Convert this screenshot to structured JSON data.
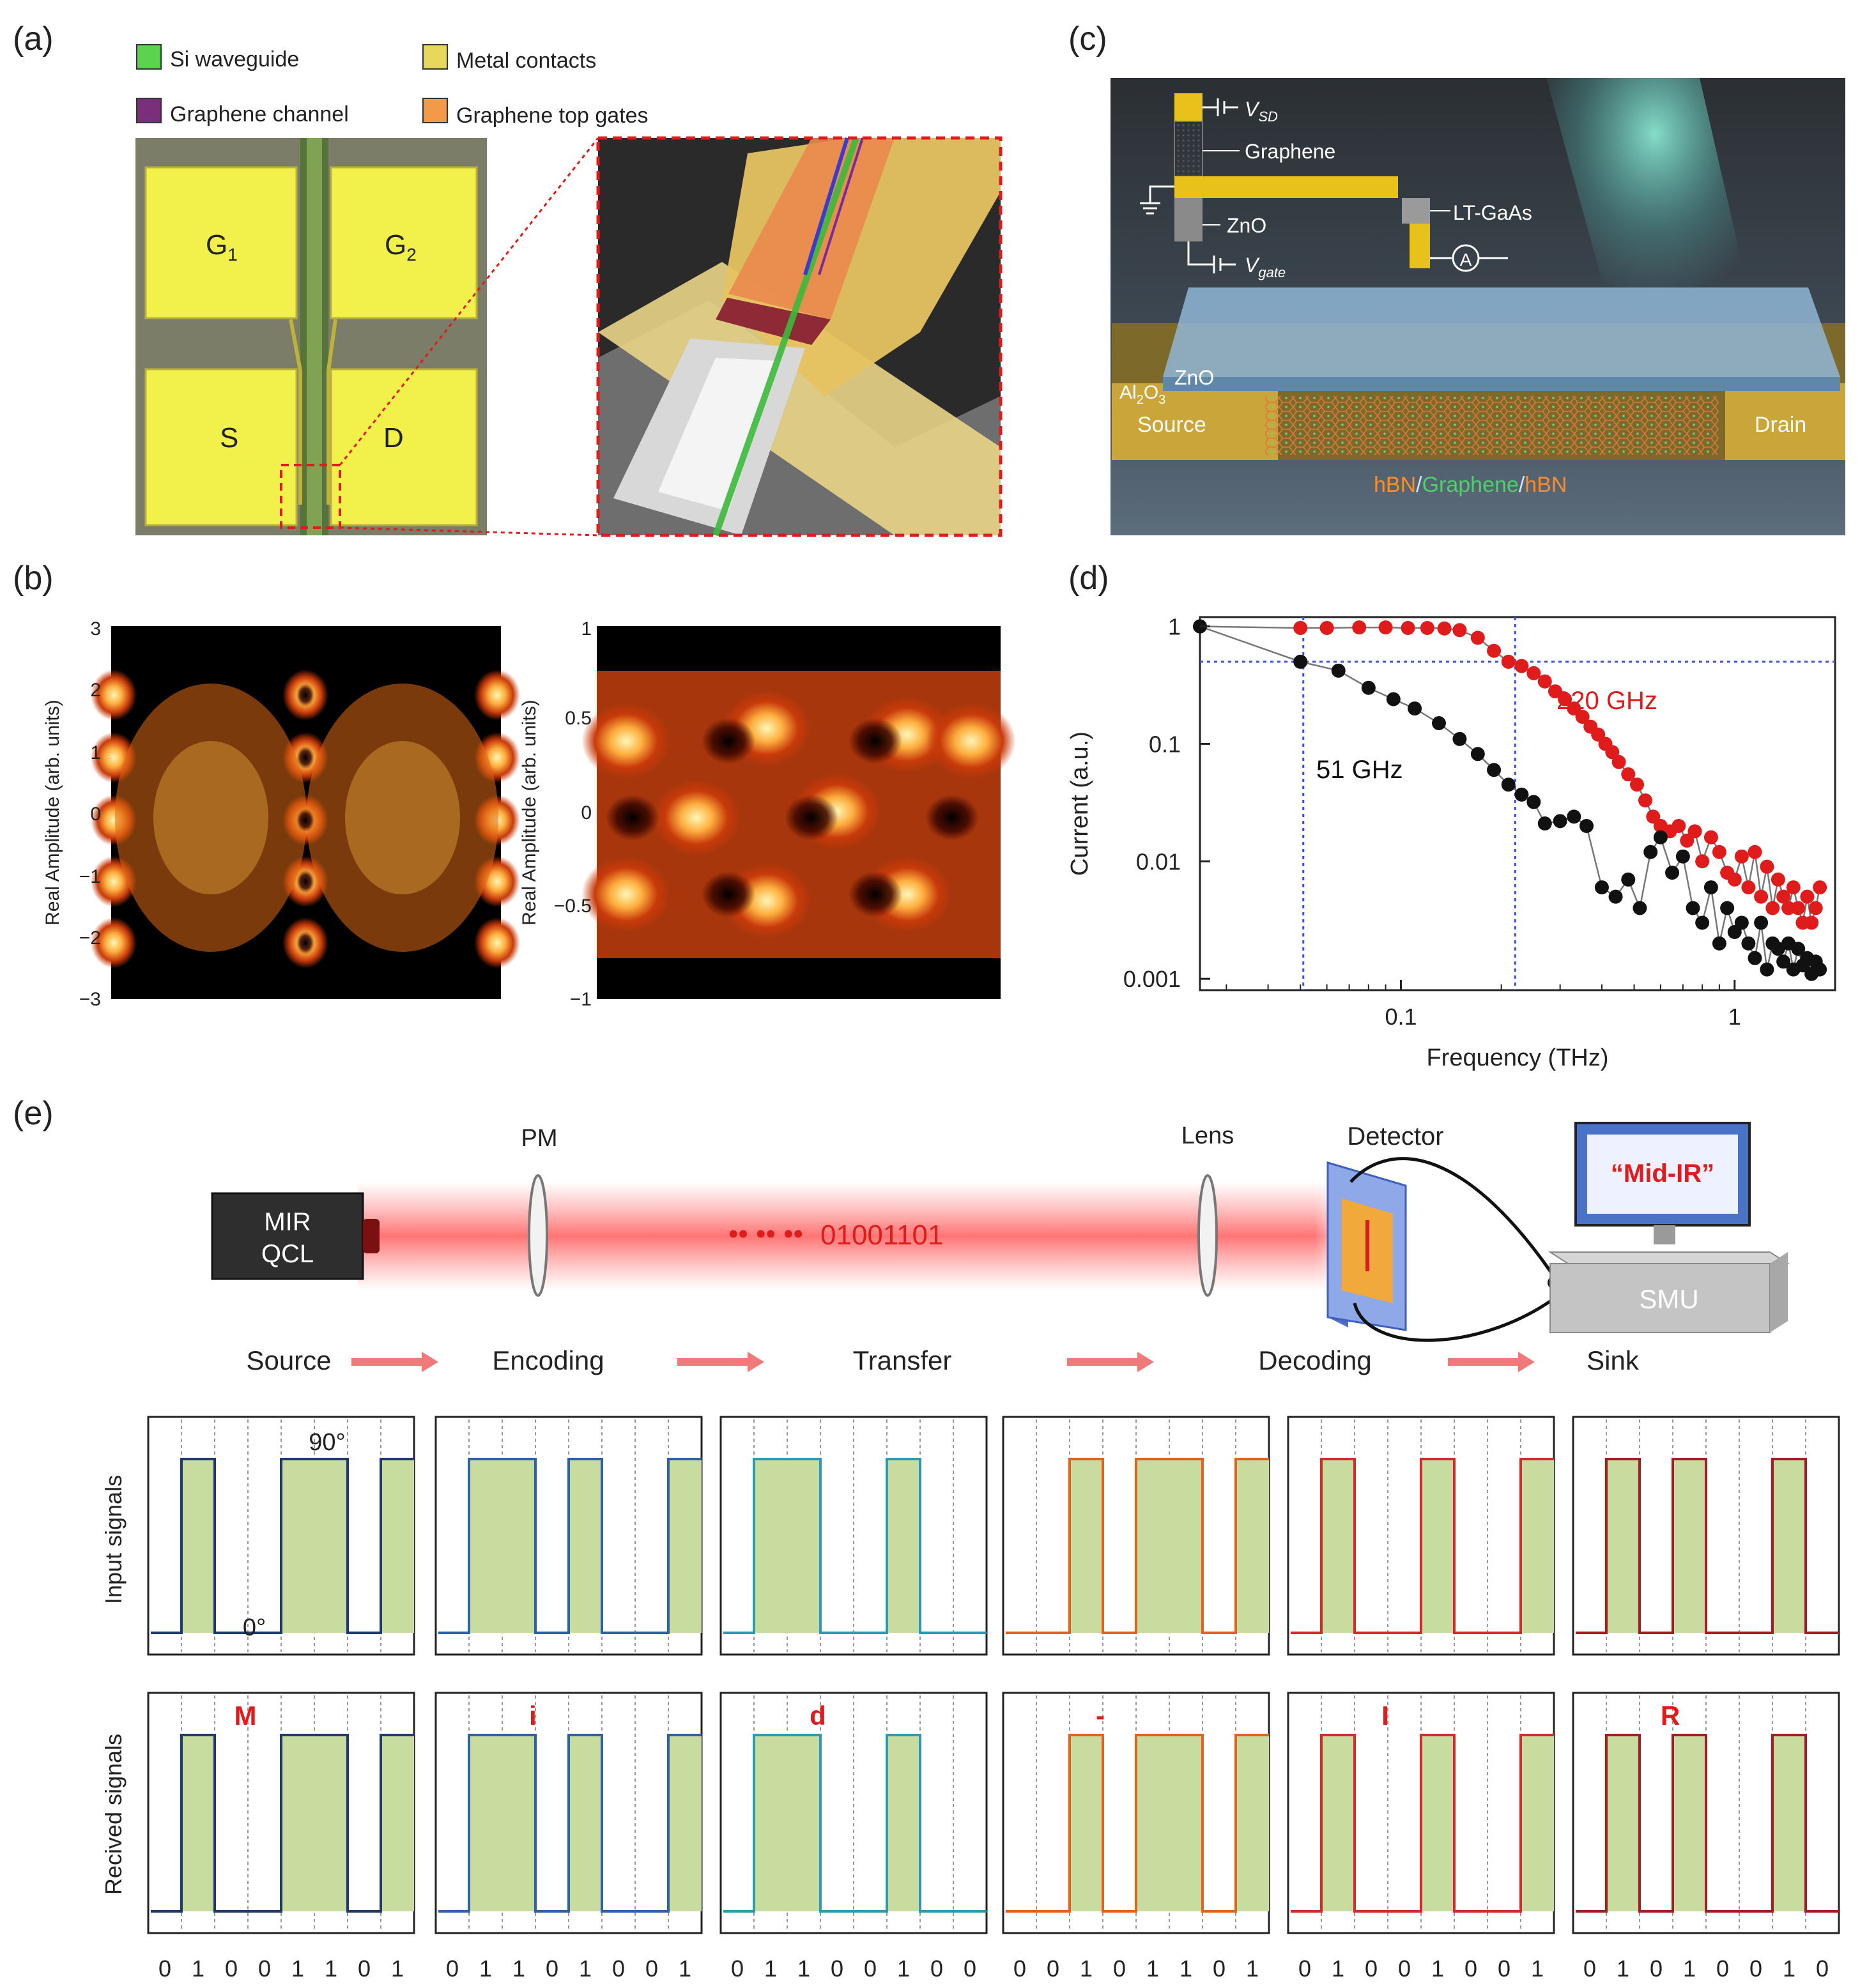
{
  "colors": {
    "si_waveguide": "#5bd34f",
    "metal_contacts": "#e6d85a",
    "graphene_channel": "#7a2f7a",
    "graphene_top_gates": "#f39a4a",
    "bar_fill": "#c9dca0",
    "red_series": "#e01b1b",
    "black_series": "#111111",
    "gridline_blue": "#3b4fd6",
    "accent_red": "#e01b1b"
  },
  "panel_a": {
    "label": "(a)",
    "legend": [
      {
        "name": "Si waveguide",
        "color": "#5bd34f"
      },
      {
        "name": "Metal contacts",
        "color": "#e6d85a"
      },
      {
        "name": "Graphene channel",
        "color": "#7a2f7a"
      },
      {
        "name": "Graphene top gates",
        "color": "#f39a4a"
      }
    ],
    "pads": {
      "g1": "G",
      "g1_sub": "1",
      "g2": "G",
      "g2_sub": "2",
      "s": "S",
      "d": "D"
    }
  },
  "panel_b": {
    "label": "(b)",
    "left": {
      "ylabel": "Real Amplitude (arb. units)",
      "ticks": [
        "3",
        "2",
        "1",
        "0",
        "−1",
        "−2",
        "−3"
      ]
    },
    "right": {
      "ylabel": "Real Amplitude (arb. units)",
      "ticks": [
        "1",
        "0.5",
        "0",
        "−0.5",
        "−1"
      ]
    }
  },
  "panel_c": {
    "label": "(c)",
    "vsd": "V",
    "vsd_sub": "SD",
    "graphene": "Graphene",
    "zno_small": "ZnO",
    "ltgaas": "LT-GaAs",
    "vgate": "V",
    "vgate_sub": "gate",
    "ammeter": "A",
    "zno_large": "ZnO",
    "al2o3": "Al",
    "al2o3_sub1": "2",
    "al2o3_mid": "O",
    "al2o3_sub2": "3",
    "source": "Source",
    "drain": "Drain",
    "stack_hbn1": "hBN",
    "stack_slash1": "/",
    "stack_graphene": "Graphene",
    "stack_slash2": "/",
    "stack_hbn2": "hBN"
  },
  "chart_data": {
    "type": "scatter",
    "title": "",
    "xlabel": "Frequency (THz)",
    "ylabel": "Current (a.u.)",
    "xscale": "log",
    "yscale": "log",
    "xlim": [
      0.025,
      2.0
    ],
    "ylim": [
      0.0008,
      1.2
    ],
    "xticks": [
      {
        "v": 0.1,
        "label": "0.1"
      },
      {
        "v": 1,
        "label": "1"
      }
    ],
    "yticks": [
      {
        "v": 1,
        "label": "1"
      },
      {
        "v": 0.1,
        "label": "0.1"
      },
      {
        "v": 0.01,
        "label": "0.01"
      },
      {
        "v": 0.001,
        "label": "0.001"
      }
    ],
    "reference_lines": {
      "hline": 0.5,
      "vlines": [
        0.051,
        0.22
      ]
    },
    "series": [
      {
        "name": "220 GHz",
        "color": "#e01b1b",
        "x": [
          0.025,
          0.05,
          0.06,
          0.075,
          0.09,
          0.105,
          0.12,
          0.135,
          0.15,
          0.17,
          0.19,
          0.21,
          0.23,
          0.25,
          0.27,
          0.29,
          0.31,
          0.33,
          0.35,
          0.37,
          0.39,
          0.41,
          0.43,
          0.45,
          0.48,
          0.51,
          0.54,
          0.57,
          0.6,
          0.64,
          0.68,
          0.72,
          0.76,
          0.8,
          0.85,
          0.9,
          0.95,
          1.0,
          1.05,
          1.1,
          1.15,
          1.2,
          1.25,
          1.3,
          1.35,
          1.4,
          1.45,
          1.5,
          1.55,
          1.6,
          1.65,
          1.7,
          1.75,
          1.8
        ],
        "y": [
          1.0,
          0.97,
          0.97,
          0.98,
          0.98,
          0.97,
          0.97,
          0.96,
          0.93,
          0.8,
          0.62,
          0.5,
          0.46,
          0.4,
          0.34,
          0.28,
          0.24,
          0.2,
          0.17,
          0.14,
          0.12,
          0.1,
          0.085,
          0.07,
          0.055,
          0.045,
          0.033,
          0.024,
          0.02,
          0.018,
          0.02,
          0.015,
          0.018,
          0.01,
          0.016,
          0.012,
          0.008,
          0.007,
          0.011,
          0.006,
          0.012,
          0.005,
          0.009,
          0.004,
          0.007,
          0.005,
          0.004,
          0.006,
          0.004,
          0.003,
          0.005,
          0.003,
          0.004,
          0.006
        ]
      },
      {
        "name": "51 GHz",
        "color": "#111111",
        "x": [
          0.025,
          0.05,
          0.065,
          0.08,
          0.095,
          0.11,
          0.13,
          0.15,
          0.17,
          0.19,
          0.21,
          0.23,
          0.25,
          0.27,
          0.3,
          0.33,
          0.36,
          0.4,
          0.44,
          0.48,
          0.52,
          0.56,
          0.6,
          0.65,
          0.7,
          0.75,
          0.8,
          0.85,
          0.9,
          0.95,
          1.0,
          1.05,
          1.1,
          1.15,
          1.2,
          1.25,
          1.3,
          1.35,
          1.4,
          1.45,
          1.5,
          1.55,
          1.6,
          1.65,
          1.7,
          1.75,
          1.8
        ],
        "y": [
          1.0,
          0.5,
          0.42,
          0.3,
          0.24,
          0.2,
          0.15,
          0.11,
          0.082,
          0.06,
          0.045,
          0.037,
          0.032,
          0.021,
          0.022,
          0.024,
          0.02,
          0.006,
          0.005,
          0.007,
          0.004,
          0.012,
          0.016,
          0.008,
          0.011,
          0.004,
          0.003,
          0.006,
          0.002,
          0.004,
          0.0025,
          0.003,
          0.002,
          0.0015,
          0.003,
          0.0012,
          0.002,
          0.0018,
          0.0014,
          0.002,
          0.0012,
          0.0018,
          0.0013,
          0.0015,
          0.0011,
          0.0014,
          0.0012
        ]
      }
    ],
    "annotations": [
      {
        "text": "220 GHz",
        "color": "#e01b1b"
      },
      {
        "text": "51 GHz",
        "color": "#111111"
      }
    ]
  },
  "panel_d": {
    "label": "(d)"
  },
  "panel_e": {
    "label": "(e)",
    "components": {
      "qcl_line1": "MIR",
      "qcl_line2": "QCL",
      "pm": "PM",
      "lens": "Lens",
      "detector": "Detector",
      "monitor_text": "“Mid-IR”",
      "smu": "SMU",
      "dots": "•• •• ••",
      "bitstream": "01001101"
    },
    "stages": [
      "Source",
      "Encoding",
      "Transfer",
      "Decoding",
      "Sink"
    ],
    "row_labels": {
      "input": "Input signals",
      "received": "Recived signals"
    },
    "phase_labels": {
      "high": "90°",
      "low": "0°"
    },
    "characters": [
      {
        "char": "M",
        "bits": [
          "0",
          "1",
          "0",
          "0",
          "1",
          "1",
          "0",
          "1"
        ],
        "color": "#1f3b6e"
      },
      {
        "char": "i",
        "bits": [
          "0",
          "1",
          "1",
          "0",
          "1",
          "0",
          "0",
          "1"
        ],
        "color": "#2e62a8"
      },
      {
        "char": "d",
        "bits": [
          "0",
          "1",
          "1",
          "0",
          "0",
          "1",
          "0",
          "0"
        ],
        "color": "#2a9bb0"
      },
      {
        "char": "-",
        "bits": [
          "0",
          "0",
          "1",
          "0",
          "1",
          "1",
          "0",
          "1"
        ],
        "color": "#e2621e"
      },
      {
        "char": "I",
        "bits": [
          "0",
          "1",
          "0",
          "0",
          "1",
          "0",
          "0",
          "1"
        ],
        "color": "#d62a2a"
      },
      {
        "char": "R",
        "bits": [
          "0",
          "1",
          "0",
          "1",
          "0",
          "0",
          "1",
          "0"
        ],
        "color": "#a61c22"
      }
    ]
  }
}
